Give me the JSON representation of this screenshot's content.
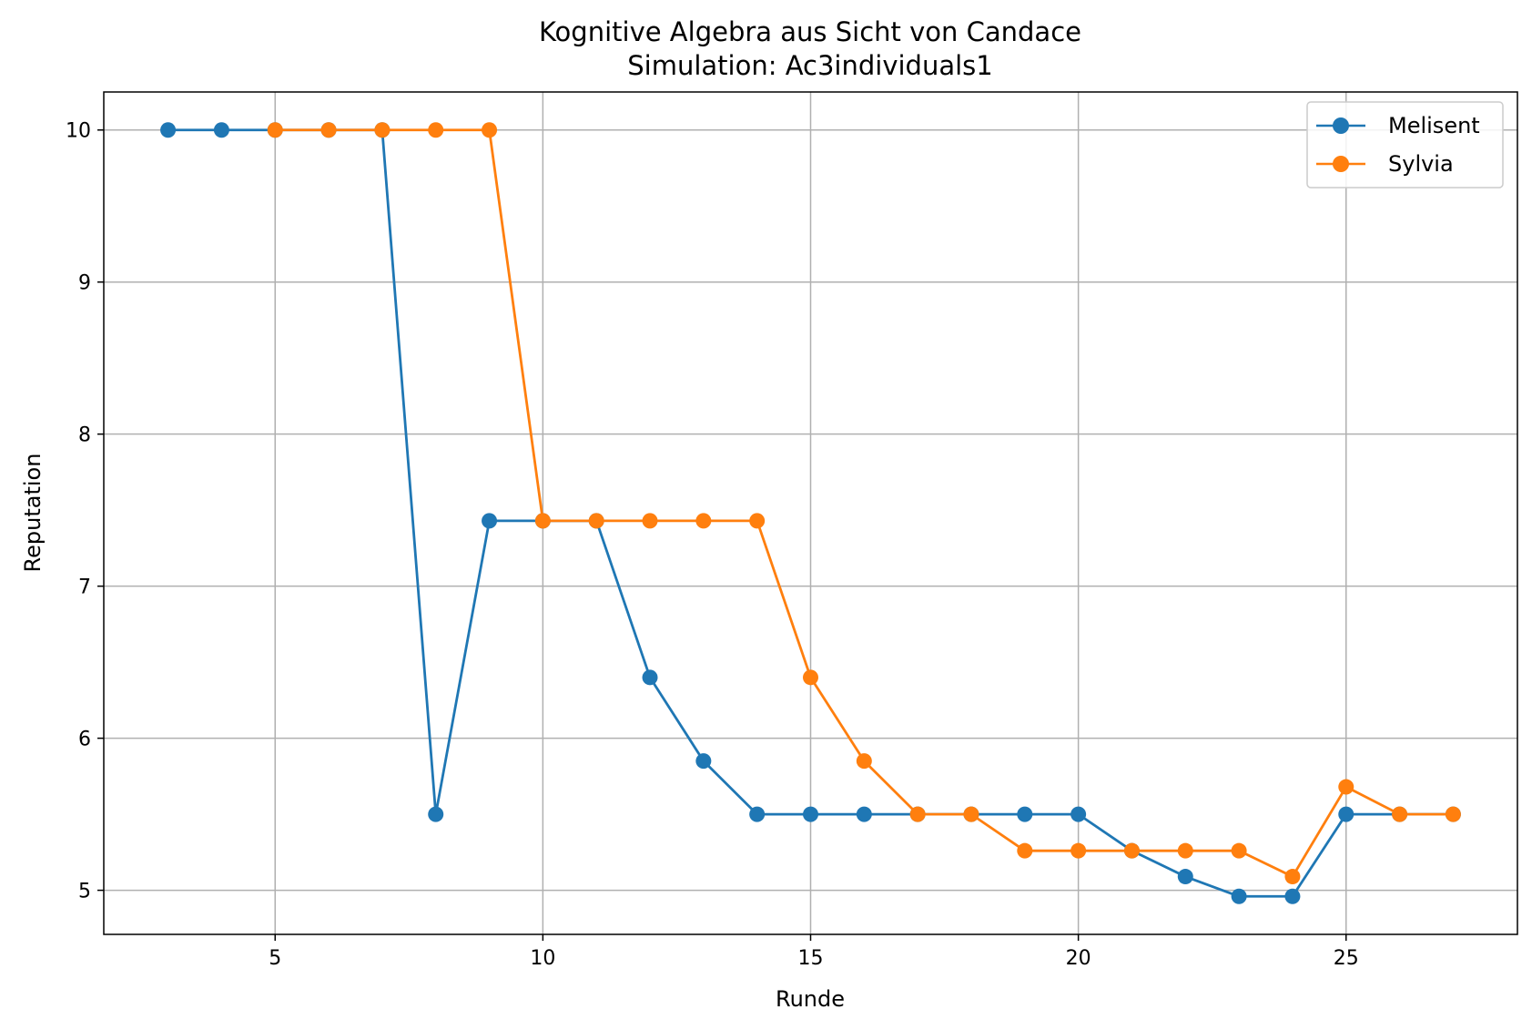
{
  "chart_data": {
    "type": "line",
    "title": "Kognitive Algebra aus Sicht von Candace",
    "subtitle": "Simulation: Ac3individuals1",
    "xlabel": "Runde",
    "ylabel": "Reputation",
    "xlim": [
      1.8,
      28.2
    ],
    "ylim": [
      4.71,
      10.25
    ],
    "xticks": [
      5,
      10,
      15,
      20,
      25
    ],
    "yticks": [
      5,
      6,
      7,
      8,
      9,
      10
    ],
    "grid": true,
    "legend_position": "top-right",
    "series": [
      {
        "name": "Melisent",
        "color": "#1f77b4",
        "x": [
          3,
          4,
          5,
          6,
          7,
          8,
          9,
          10,
          11,
          12,
          13,
          14,
          15,
          16,
          17,
          18,
          19,
          20,
          21,
          22,
          23,
          24,
          25,
          26,
          27
        ],
        "y": [
          10,
          10,
          10,
          10,
          10,
          5.5,
          7.43,
          7.43,
          7.43,
          6.4,
          5.85,
          5.5,
          5.5,
          5.5,
          5.5,
          5.5,
          5.5,
          5.5,
          5.26,
          5.09,
          4.96,
          4.96,
          5.5,
          5.5,
          5.5
        ]
      },
      {
        "name": "Sylvia",
        "color": "#ff7f0e",
        "x": [
          5,
          6,
          7,
          8,
          9,
          10,
          11,
          12,
          13,
          14,
          15,
          16,
          17,
          18,
          19,
          20,
          21,
          22,
          23,
          24,
          25,
          26,
          27
        ],
        "y": [
          10,
          10,
          10,
          10,
          10,
          7.43,
          7.43,
          7.43,
          7.43,
          7.43,
          6.4,
          5.85,
          5.5,
          5.5,
          5.26,
          5.26,
          5.26,
          5.26,
          5.26,
          5.09,
          5.68,
          5.5,
          5.5
        ]
      }
    ]
  }
}
